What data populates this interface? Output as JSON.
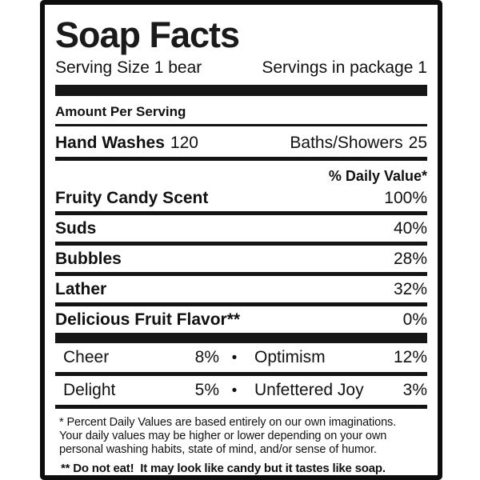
{
  "label": {
    "title": "Soap Facts",
    "serving_size": "Serving Size 1 bear",
    "servings_in_package": "Servings in package 1",
    "amount_per_serving": "Amount Per Serving",
    "hand_washes_label": "Hand Washes",
    "hand_washes_value": "120",
    "baths_showers_label": "Baths/Showers",
    "baths_showers_value": "25",
    "daily_value_header": "% Daily Value*"
  },
  "rows": [
    {
      "name": "Fruity Candy Scent",
      "value": "100%"
    },
    {
      "name": "Suds",
      "value": "40%"
    },
    {
      "name": "Bubbles",
      "value": "28%"
    },
    {
      "name": "Lather",
      "value": "32%"
    },
    {
      "name": "Delicious Fruit Flavor**",
      "value": "0%"
    }
  ],
  "sub_rows": [
    {
      "name": "Cheer",
      "value": "8%",
      "bullet": "•",
      "name2": "Optimism",
      "value2": "12%"
    },
    {
      "name": "Delight",
      "value": "5%",
      "bullet": "•",
      "name2": "Unfettered Joy",
      "value2": "3%"
    }
  ],
  "footnotes": {
    "line1": "* Percent Daily Values are based entirely on our own imaginations.",
    "line2": "Your daily values may be higher or lower depending on your own",
    "line3": "personal washing habits, state of mind, and/or sense of humor.",
    "bold_line": "** Do not eat!  It may look like candy but it tastes like soap."
  },
  "colors": {
    "ink": "#111111",
    "background": "#ffffff"
  }
}
